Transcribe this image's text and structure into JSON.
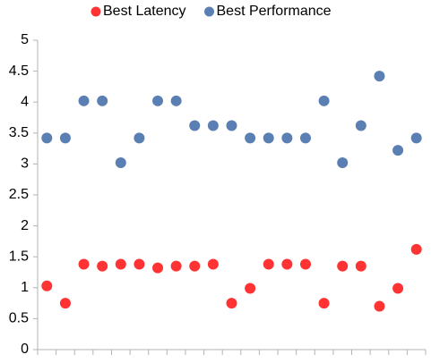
{
  "chart_data": {
    "type": "scatter",
    "categories": [
      null,
      null,
      null,
      null,
      null,
      null,
      null,
      null,
      null,
      null,
      null,
      null,
      null,
      null,
      null,
      null,
      null,
      null,
      null,
      null,
      null
    ],
    "series": [
      {
        "name": "Best Latency",
        "color": "#ff3333",
        "values": [
          1.03,
          0.75,
          1.38,
          1.35,
          1.38,
          1.38,
          1.32,
          1.35,
          1.35,
          1.38,
          0.75,
          0.99,
          1.38,
          1.38,
          1.38,
          0.75,
          1.35,
          1.35,
          0.7,
          0.99,
          1.62
        ]
      },
      {
        "name": "Best Performance",
        "color": "#5a7fb3",
        "values": [
          3.42,
          3.42,
          4.02,
          4.02,
          3.02,
          3.42,
          4.02,
          4.02,
          3.62,
          3.62,
          3.62,
          3.42,
          3.42,
          3.42,
          3.42,
          4.02,
          3.02,
          3.62,
          4.42,
          3.22,
          3.42
        ]
      }
    ],
    "ylim": [
      0,
      5
    ],
    "yticks": [
      0,
      0.5,
      1,
      1.5,
      2,
      2.5,
      3,
      3.5,
      4,
      4.5,
      5
    ],
    "grid": false,
    "legend": "top"
  }
}
